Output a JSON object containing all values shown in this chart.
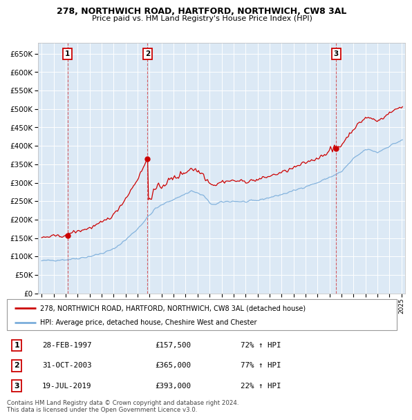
{
  "title_line1": "278, NORTHWICH ROAD, HARTFORD, NORTHWICH, CW8 3AL",
  "title_line2": "Price paid vs. HM Land Registry's House Price Index (HPI)",
  "plot_bg_color": "#dce9f5",
  "ylim": [
    0,
    680000
  ],
  "yticks": [
    0,
    50000,
    100000,
    150000,
    200000,
    250000,
    300000,
    350000,
    400000,
    450000,
    500000,
    550000,
    600000,
    650000
  ],
  "sales": [
    {
      "date_num": 1997.15,
      "price": 157500,
      "label": "1"
    },
    {
      "date_num": 2003.83,
      "price": 365000,
      "label": "2"
    },
    {
      "date_num": 2019.54,
      "price": 393000,
      "label": "3"
    }
  ],
  "legend_red": "278, NORTHWICH ROAD, HARTFORD, NORTHWICH, CW8 3AL (detached house)",
  "legend_blue": "HPI: Average price, detached house, Cheshire West and Chester",
  "table": [
    {
      "num": "1",
      "date": "28-FEB-1997",
      "price": "£157,500",
      "hpi": "72% ↑ HPI"
    },
    {
      "num": "2",
      "date": "31-OCT-2003",
      "price": "£365,000",
      "hpi": "77% ↑ HPI"
    },
    {
      "num": "3",
      "date": "19-JUL-2019",
      "price": "£393,000",
      "hpi": "22% ↑ HPI"
    }
  ],
  "footer": "Contains HM Land Registry data © Crown copyright and database right 2024.\nThis data is licensed under the Open Government Licence v3.0.",
  "red_color": "#cc0000",
  "blue_color": "#7aaddb"
}
